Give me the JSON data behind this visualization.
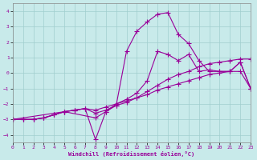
{
  "xlabel": "Windchill (Refroidissement éolien,°C)",
  "xlim": [
    0,
    23
  ],
  "ylim": [
    -4.5,
    4.5
  ],
  "xticks": [
    0,
    1,
    2,
    3,
    4,
    5,
    6,
    7,
    8,
    9,
    10,
    11,
    12,
    13,
    14,
    15,
    16,
    17,
    18,
    19,
    20,
    21,
    22,
    23
  ],
  "yticks": [
    -4,
    -3,
    -2,
    -1,
    0,
    1,
    2,
    3,
    4
  ],
  "bg_color": "#c8eaea",
  "grid_color": "#a0cece",
  "line_color": "#990099",
  "line1_x": [
    0,
    1,
    2,
    3,
    4,
    5,
    6,
    7,
    8,
    9,
    10,
    11,
    12,
    13,
    14,
    15,
    16,
    17,
    18,
    19,
    20,
    21,
    22,
    23
  ],
  "line1_y": [
    -3.0,
    -3.0,
    -3.0,
    -2.9,
    -2.7,
    -2.5,
    -2.4,
    -2.3,
    -2.4,
    -2.2,
    -2.0,
    -1.8,
    -1.6,
    -1.4,
    -1.1,
    -0.9,
    -0.7,
    -0.5,
    -0.3,
    -0.1,
    0.0,
    0.1,
    0.1,
    -1.0
  ],
  "line2_x": [
    0,
    1,
    2,
    3,
    4,
    5,
    6,
    7,
    8,
    9,
    10,
    11,
    12,
    13,
    14,
    15,
    16,
    17,
    18,
    19,
    20,
    21,
    22,
    23
  ],
  "line2_y": [
    -3.0,
    -3.0,
    -3.0,
    -2.9,
    -2.7,
    -2.5,
    -2.4,
    -2.3,
    -4.3,
    -2.5,
    -2.0,
    -1.7,
    -1.3,
    -0.5,
    1.4,
    1.2,
    0.8,
    1.2,
    0.1,
    0.2,
    0.1,
    0.1,
    0.7,
    -1.0
  ],
  "line3_x": [
    0,
    1,
    2,
    3,
    4,
    5,
    6,
    7,
    8,
    9,
    10,
    11,
    12,
    13,
    14,
    15,
    16,
    17,
    18,
    19,
    20,
    21,
    22,
    23
  ],
  "line3_y": [
    -3.0,
    -3.0,
    -3.0,
    -2.9,
    -2.7,
    -2.5,
    -2.4,
    -2.3,
    -2.6,
    -2.4,
    -2.1,
    -1.9,
    -1.6,
    -1.2,
    -0.8,
    -0.4,
    -0.1,
    0.1,
    0.4,
    0.6,
    0.7,
    0.8,
    0.9,
    0.9
  ],
  "line4_x": [
    0,
    5,
    8,
    9,
    10,
    11,
    12,
    13,
    14,
    15,
    16,
    17,
    18,
    19,
    20,
    21,
    22,
    23
  ],
  "line4_y": [
    -3.0,
    -2.5,
    -2.9,
    -2.5,
    -2.1,
    1.4,
    2.7,
    3.3,
    3.8,
    3.9,
    2.5,
    1.9,
    0.8,
    0.1,
    0.1,
    0.1,
    0.7,
    -1.0
  ],
  "marker": "+",
  "markersize": 4,
  "linewidth": 0.8
}
